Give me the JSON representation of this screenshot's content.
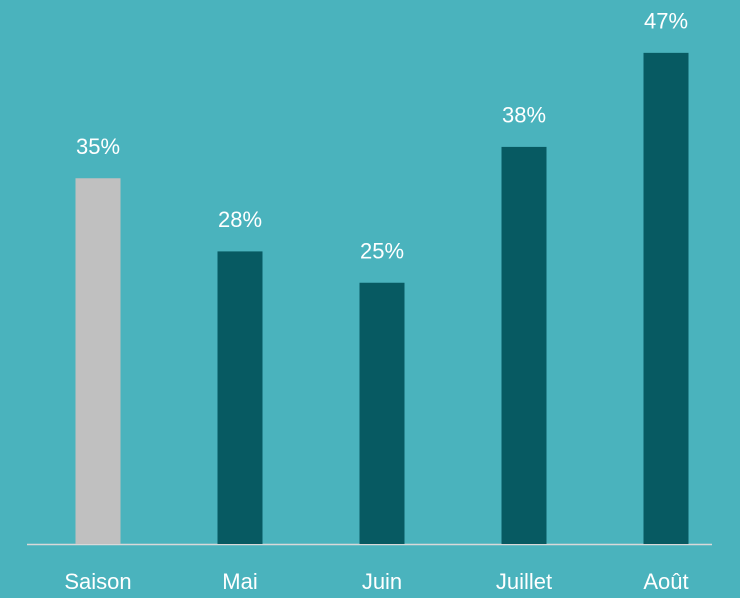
{
  "chart_data": {
    "type": "bar",
    "categories": [
      "Saison",
      "Mai",
      "Juin",
      "Juillet",
      "Août"
    ],
    "values": [
      35,
      28,
      25,
      38,
      47
    ],
    "value_labels": [
      "35%",
      "28%",
      "25%",
      "38%",
      "47%"
    ],
    "colors": [
      "#c0c0c0",
      "#075a62",
      "#075a62",
      "#075a62",
      "#075a62"
    ]
  }
}
